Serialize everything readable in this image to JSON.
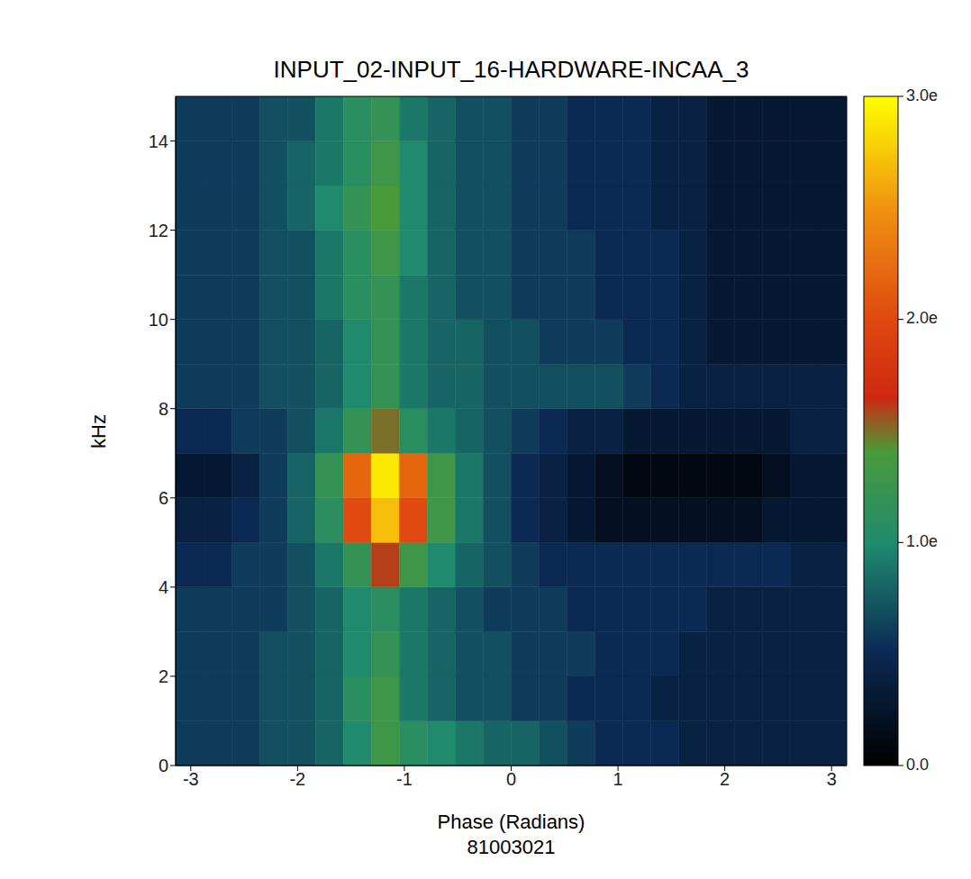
{
  "chart_data": {
    "type": "heatmap",
    "title": "INPUT_02-INPUT_16-HARDWARE-INCAA_3",
    "subtitle": "81003021",
    "x_label": "Phase (Radians)",
    "y_label": "kHz",
    "xlim": [
      -3.1416,
      3.1416
    ],
    "ylim": [
      0,
      15
    ],
    "xticks": [
      -3,
      -2,
      -1,
      0,
      1,
      2,
      3
    ],
    "yticks": [
      0,
      2,
      4,
      6,
      8,
      10,
      12,
      14
    ],
    "x_edges": [
      -3.1416,
      -2.8798,
      -2.618,
      -2.3562,
      -2.0944,
      -1.8326,
      -1.5708,
      -1.309,
      -1.0472,
      -0.7854,
      -0.5236,
      -0.2618,
      0,
      0.2618,
      0.5236,
      0.7854,
      1.0472,
      1.309,
      1.5708,
      1.8326,
      2.0944,
      2.3562,
      2.618,
      2.8798,
      3.1416
    ],
    "y_edges": [
      0,
      1,
      2,
      3,
      4,
      5,
      6,
      7,
      8,
      9,
      10,
      11,
      12,
      13,
      14,
      15
    ],
    "cells": [
      [
        0.6,
        0.6,
        0.6,
        0.7,
        0.7,
        0.8,
        1.0,
        1.3,
        1.1,
        1.0,
        0.9,
        0.8,
        0.8,
        0.7,
        0.6,
        0.5,
        0.5,
        0.5,
        0.4,
        0.4,
        0.4,
        0.4,
        0.4,
        0.4
      ],
      [
        0.6,
        0.6,
        0.6,
        0.7,
        0.7,
        0.8,
        1.1,
        1.3,
        0.9,
        0.8,
        0.7,
        0.7,
        0.6,
        0.6,
        0.5,
        0.5,
        0.5,
        0.4,
        0.4,
        0.4,
        0.4,
        0.4,
        0.4,
        0.4
      ],
      [
        0.6,
        0.6,
        0.6,
        0.7,
        0.7,
        0.8,
        1.0,
        1.2,
        0.9,
        0.8,
        0.7,
        0.7,
        0.6,
        0.6,
        0.6,
        0.5,
        0.5,
        0.5,
        0.4,
        0.4,
        0.4,
        0.4,
        0.4,
        0.4
      ],
      [
        0.6,
        0.6,
        0.6,
        0.6,
        0.7,
        0.8,
        1.0,
        1.1,
        0.9,
        0.8,
        0.7,
        0.6,
        0.6,
        0.6,
        0.5,
        0.5,
        0.5,
        0.5,
        0.5,
        0.4,
        0.4,
        0.4,
        0.4,
        0.4
      ],
      [
        0.5,
        0.5,
        0.6,
        0.6,
        0.7,
        0.9,
        1.2,
        1.6,
        1.3,
        1.0,
        0.8,
        0.7,
        0.6,
        0.5,
        0.5,
        0.5,
        0.5,
        0.5,
        0.5,
        0.5,
        0.5,
        0.5,
        0.4,
        0.4
      ],
      [
        0.4,
        0.4,
        0.5,
        0.6,
        0.8,
        1.1,
        2.0,
        2.7,
        2.0,
        1.3,
        0.9,
        0.7,
        0.5,
        0.4,
        0.3,
        0.2,
        0.2,
        0.2,
        0.2,
        0.2,
        0.2,
        0.3,
        0.3,
        0.3
      ],
      [
        0.3,
        0.3,
        0.4,
        0.6,
        0.8,
        1.2,
        2.2,
        2.9,
        2.2,
        1.3,
        0.9,
        0.7,
        0.5,
        0.4,
        0.3,
        0.2,
        0.1,
        0.1,
        0.1,
        0.1,
        0.1,
        0.2,
        0.3,
        0.3
      ],
      [
        0.5,
        0.5,
        0.6,
        0.6,
        0.7,
        0.9,
        1.2,
        1.5,
        1.1,
        0.9,
        0.8,
        0.7,
        0.6,
        0.5,
        0.4,
        0.4,
        0.3,
        0.3,
        0.3,
        0.3,
        0.3,
        0.3,
        0.4,
        0.4
      ],
      [
        0.6,
        0.6,
        0.6,
        0.7,
        0.7,
        0.8,
        1.0,
        1.2,
        0.9,
        0.8,
        0.8,
        0.7,
        0.7,
        0.7,
        0.7,
        0.7,
        0.6,
        0.5,
        0.4,
        0.4,
        0.4,
        0.4,
        0.4,
        0.4
      ],
      [
        0.6,
        0.6,
        0.6,
        0.7,
        0.7,
        0.8,
        1.0,
        1.2,
        0.9,
        0.8,
        0.8,
        0.7,
        0.7,
        0.6,
        0.6,
        0.6,
        0.5,
        0.5,
        0.4,
        0.3,
        0.3,
        0.3,
        0.3,
        0.3
      ],
      [
        0.6,
        0.6,
        0.6,
        0.7,
        0.7,
        0.9,
        1.1,
        1.2,
        0.9,
        0.8,
        0.7,
        0.7,
        0.6,
        0.6,
        0.6,
        0.5,
        0.5,
        0.5,
        0.4,
        0.3,
        0.3,
        0.3,
        0.3,
        0.3
      ],
      [
        0.6,
        0.6,
        0.6,
        0.7,
        0.7,
        0.9,
        1.1,
        1.3,
        1.0,
        0.8,
        0.7,
        0.7,
        0.6,
        0.6,
        0.6,
        0.5,
        0.5,
        0.5,
        0.4,
        0.3,
        0.3,
        0.3,
        0.3,
        0.3
      ],
      [
        0.6,
        0.6,
        0.6,
        0.7,
        0.8,
        1.0,
        1.2,
        1.4,
        1.0,
        0.8,
        0.7,
        0.7,
        0.6,
        0.6,
        0.5,
        0.5,
        0.5,
        0.4,
        0.4,
        0.3,
        0.3,
        0.3,
        0.3,
        0.3
      ],
      [
        0.6,
        0.6,
        0.6,
        0.7,
        0.8,
        0.9,
        1.1,
        1.3,
        1.0,
        0.8,
        0.7,
        0.7,
        0.6,
        0.6,
        0.5,
        0.5,
        0.5,
        0.4,
        0.4,
        0.3,
        0.3,
        0.3,
        0.3,
        0.3
      ],
      [
        0.6,
        0.6,
        0.6,
        0.7,
        0.7,
        0.9,
        1.1,
        1.2,
        0.9,
        0.8,
        0.7,
        0.7,
        0.6,
        0.6,
        0.5,
        0.5,
        0.5,
        0.4,
        0.4,
        0.3,
        0.3,
        0.3,
        0.3,
        0.3
      ]
    ],
    "colorbar": {
      "range": [
        0,
        3
      ],
      "ticks": [
        {
          "value": 0,
          "label": "0.0"
        },
        {
          "value": 1,
          "label": "1.0e"
        },
        {
          "value": 2,
          "label": "2.0e"
        },
        {
          "value": 3,
          "label": "3.0e"
        }
      ]
    }
  }
}
